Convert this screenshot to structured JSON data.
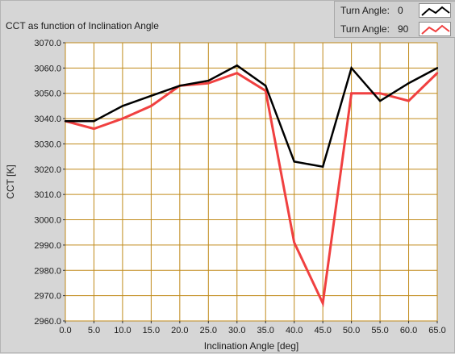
{
  "chart_data": {
    "type": "line",
    "title": "CCT as function of Inclination Angle",
    "xlabel": "Inclination Angle [deg]",
    "ylabel": "CCT [K]",
    "xlim": [
      0,
      65
    ],
    "ylim": [
      2960,
      3070
    ],
    "x_ticks": [
      "0.0",
      "5.0",
      "10.0",
      "15.0",
      "20.0",
      "25.0",
      "30.0",
      "35.0",
      "40.0",
      "45.0",
      "50.0",
      "55.0",
      "60.0",
      "65.0"
    ],
    "y_ticks": [
      "2960.0",
      "2970.0",
      "2980.0",
      "2990.0",
      "3000.0",
      "3010.0",
      "3020.0",
      "3030.0",
      "3040.0",
      "3050.0",
      "3060.0",
      "3070.0"
    ],
    "grid": true,
    "legend_position": "top-right",
    "x": [
      0,
      5,
      10,
      15,
      20,
      25,
      30,
      35,
      40,
      45,
      50,
      55,
      60,
      65
    ],
    "series": [
      {
        "legend_label": "Turn Angle:",
        "legend_value": "0",
        "color": "#000000",
        "values": [
          3039,
          3039,
          3045,
          3049,
          3053,
          3055,
          3061,
          3053,
          3023,
          3021,
          3060,
          3047,
          3054,
          3060
        ]
      },
      {
        "legend_label": "Turn Angle:",
        "legend_value": "90",
        "color": "#f04040",
        "values": [
          3039,
          3036,
          3040,
          3045,
          3053,
          3054,
          3058,
          3051,
          2991,
          2967,
          3050,
          3050,
          3047,
          3058
        ]
      }
    ],
    "colors": {
      "plot_background": "#ffffff",
      "grid": "#c08a1a",
      "panel": "#d6d6d6"
    }
  }
}
